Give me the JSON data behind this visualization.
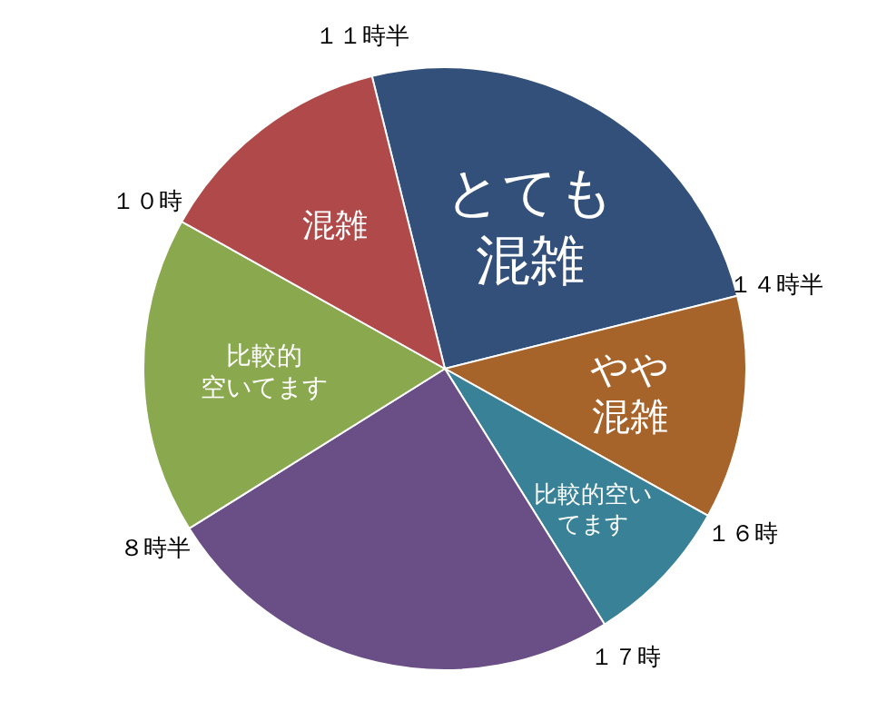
{
  "chart_data": {
    "type": "pie",
    "categories": [
      "とても混雑",
      "やや混雑",
      "比較的空いてます",
      null,
      "比較的空いてます",
      "混雑"
    ],
    "values": [
      25,
      12,
      8,
      25,
      17,
      13
    ],
    "colors": [
      "#33507a",
      "#a6632a",
      "#388196",
      "#6a4f87",
      "#8aa84e",
      "#b04a4a"
    ],
    "annotations": [
      "１１時半",
      "１４時半",
      "１６時",
      "１７時",
      "８時半",
      "１０時"
    ]
  }
}
